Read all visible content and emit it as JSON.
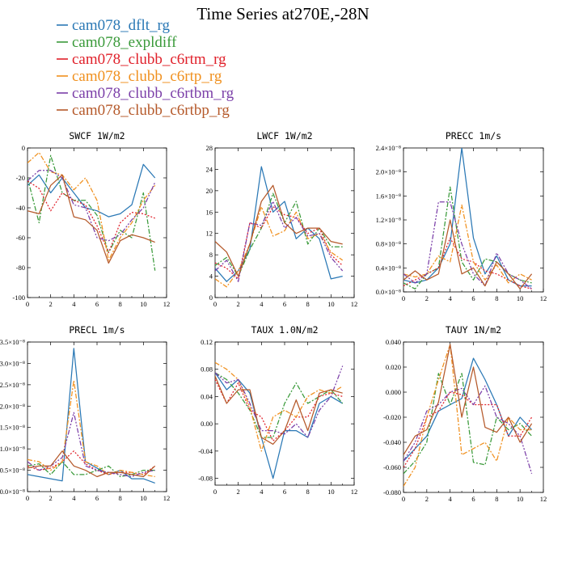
{
  "figure": {
    "title": "Time Series at270E,-28N",
    "legend": [
      {
        "name": "cam078_dflt_rg",
        "color": "#2a78b5"
      },
      {
        "name": "cam078_expldiff",
        "color": "#3a9a3a"
      },
      {
        "name": "cam078_clubb_c6rtm_rg",
        "color": "#e0202a"
      },
      {
        "name": "cam078_clubb_c6rtp_rg",
        "color": "#f0901e"
      },
      {
        "name": "cam078_clubb_c6rtbm_rg",
        "color": "#7b3fa8"
      },
      {
        "name": "cam078_clubb_c6rtbp_rg",
        "color": "#b5592a"
      }
    ]
  },
  "chart_data": [
    {
      "type": "line",
      "title": "SWCF   1W/m2",
      "x": [
        0,
        1,
        2,
        3,
        4,
        5,
        6,
        7,
        8,
        9,
        10,
        11
      ],
      "xlim": [
        0,
        12
      ],
      "xticks": [
        "0",
        "2",
        "4",
        "6",
        "8",
        "10",
        "12"
      ],
      "ylim": [
        -100,
        0
      ],
      "yticks": [
        "-100",
        "-80",
        "-60",
        "-40",
        "-20",
        "0"
      ],
      "series": [
        {
          "values": [
            -25,
            -18,
            -30,
            -20,
            -30,
            -40,
            -42,
            -46,
            -44,
            -38,
            -11,
            -20
          ]
        },
        {
          "values": [
            -20,
            -50,
            -5,
            -30,
            -35,
            -35,
            -45,
            -70,
            -55,
            -60,
            -30,
            -82
          ]
        },
        {
          "values": [
            -22,
            -27,
            -42,
            -30,
            -35,
            -38,
            -52,
            -70,
            -50,
            -43,
            -44,
            -47
          ]
        },
        {
          "values": [
            -10,
            -3,
            -16,
            -18,
            -28,
            -20,
            -35,
            -75,
            -60,
            -50,
            -35,
            -25
          ]
        },
        {
          "values": [
            -22,
            -15,
            -15,
            -20,
            -38,
            -40,
            -60,
            -62,
            -58,
            -48,
            -40,
            -23
          ]
        },
        {
          "values": [
            -42,
            -44,
            -25,
            -18,
            -46,
            -48,
            -55,
            -77,
            -62,
            -58,
            -60,
            -63
          ]
        }
      ]
    },
    {
      "type": "line",
      "title": "LWCF   1W/m2",
      "x": [
        0,
        1,
        2,
        3,
        4,
        5,
        6,
        7,
        8,
        9,
        10,
        11
      ],
      "xlim": [
        0,
        12
      ],
      "xticks": [
        "0",
        "2",
        "4",
        "6",
        "8",
        "10",
        "12"
      ],
      "ylim": [
        0,
        28
      ],
      "yticks": [
        "0",
        "4",
        "8",
        "12",
        "16",
        "20",
        "24",
        "28"
      ],
      "series": [
        {
          "values": [
            5.5,
            3,
            5,
            9,
            24.5,
            16,
            18,
            11,
            13,
            11,
            3.5,
            4
          ]
        },
        {
          "values": [
            6,
            7.5,
            4,
            9,
            13,
            19.5,
            14,
            18,
            10,
            13,
            9.5,
            9.5
          ]
        },
        {
          "values": [
            6.5,
            5.5,
            3.5,
            14,
            13,
            17,
            15.5,
            15,
            12,
            13,
            8,
            6
          ]
        },
        {
          "values": [
            3.5,
            2,
            5,
            10,
            17,
            11.5,
            12.5,
            16,
            11,
            12,
            8.5,
            7
          ]
        },
        {
          "values": [
            5,
            7,
            3,
            14,
            13.5,
            18,
            13,
            15,
            11.5,
            12,
            7.5,
            5
          ]
        },
        {
          "values": [
            10.5,
            8.5,
            4,
            10,
            18,
            21,
            14,
            12,
            13,
            13,
            10.5,
            10
          ]
        }
      ]
    },
    {
      "type": "line",
      "title": "PRECC   1m/s",
      "x": [
        0,
        1,
        2,
        3,
        4,
        5,
        6,
        7,
        8,
        9,
        10,
        11
      ],
      "xlim": [
        0,
        12
      ],
      "xticks": [
        "0",
        "2",
        "4",
        "6",
        "8",
        "10",
        "12"
      ],
      "ylim": [
        0,
        2.4
      ],
      "ytick_values": [
        0,
        0.4,
        0.8,
        1.2,
        1.6,
        2.0,
        2.4
      ],
      "yticks": [
        "0.0×10⁻⁸",
        "0.4×10⁻⁸",
        "0.8×10⁻⁸",
        "1.2×10⁻⁸",
        "1.6×10⁻⁸",
        "2.0×10⁻⁸",
        "2.4×10⁻⁸"
      ],
      "series": [
        {
          "values": [
            0.2,
            0.15,
            0.2,
            0.4,
            0.8,
            2.4,
            0.9,
            0.3,
            0.6,
            0.2,
            0.1,
            0.1
          ]
        },
        {
          "values": [
            0.15,
            0.05,
            0.3,
            0.4,
            1.75,
            0.5,
            0.2,
            0.55,
            0.5,
            0.3,
            0.2,
            0.15
          ]
        },
        {
          "values": [
            0.1,
            0.2,
            0.3,
            0.4,
            0.9,
            0.55,
            0.5,
            0.35,
            0.3,
            0.2,
            0.1,
            0.05
          ]
        },
        {
          "values": [
            0.3,
            0.25,
            0.3,
            0.6,
            0.5,
            1.45,
            0.5,
            0.2,
            0.45,
            0.15,
            0.3,
            0.2
          ]
        },
        {
          "values": [
            0.3,
            0.15,
            0.3,
            1.5,
            1.5,
            0.8,
            0.3,
            0.1,
            0.65,
            0.3,
            0.2,
            0.05
          ]
        },
        {
          "values": [
            0.2,
            0.35,
            0.2,
            0.3,
            1.2,
            0.3,
            0.4,
            0.1,
            0.5,
            0.3,
            0.05,
            0.3
          ]
        }
      ]
    },
    {
      "type": "line",
      "title": "PRECL   1m/s",
      "x": [
        0,
        1,
        2,
        3,
        4,
        5,
        6,
        7,
        8,
        9,
        10,
        11
      ],
      "xlim": [
        0,
        12
      ],
      "xticks": [
        "0",
        "2",
        "4",
        "6",
        "8",
        "10",
        "12"
      ],
      "ylim": [
        0,
        3.5
      ],
      "ytick_values": [
        0,
        0.5,
        1.0,
        1.5,
        2.0,
        2.5,
        3.0,
        3.5
      ],
      "yticks": [
        "0.0×10⁻⁸",
        "0.5×10⁻⁸",
        "1.0×10⁻⁸",
        "1.5×10⁻⁸",
        "2.0×10⁻⁸",
        "2.5×10⁻⁸",
        "3.0×10⁻⁸",
        "3.5×10⁻⁸"
      ],
      "series": [
        {
          "values": [
            0.4,
            0.35,
            0.3,
            0.25,
            3.35,
            0.7,
            0.55,
            0.4,
            0.5,
            0.3,
            0.3,
            0.2
          ]
        },
        {
          "values": [
            0.6,
            0.65,
            0.4,
            0.7,
            0.4,
            0.4,
            0.5,
            0.6,
            0.35,
            0.4,
            0.5,
            0.5
          ]
        },
        {
          "values": [
            0.6,
            0.5,
            0.55,
            0.7,
            0.95,
            0.65,
            0.5,
            0.4,
            0.45,
            0.45,
            0.4,
            0.6
          ]
        },
        {
          "values": [
            0.75,
            0.7,
            0.5,
            0.7,
            2.6,
            0.7,
            0.6,
            0.4,
            0.5,
            0.45,
            0.4,
            0.35
          ]
        },
        {
          "values": [
            0.7,
            0.5,
            0.6,
            0.8,
            1.85,
            0.6,
            0.5,
            0.45,
            0.4,
            0.35,
            0.45,
            0.5
          ]
        },
        {
          "values": [
            0.55,
            0.6,
            0.6,
            0.95,
            0.6,
            0.5,
            0.35,
            0.45,
            0.45,
            0.4,
            0.35,
            0.6
          ]
        }
      ]
    },
    {
      "type": "line",
      "title": "TAUX   1.0N/m2",
      "x": [
        0,
        1,
        2,
        3,
        4,
        5,
        6,
        7,
        8,
        9,
        10,
        11
      ],
      "xlim": [
        0,
        12
      ],
      "xticks": [
        "0",
        "2",
        "4",
        "6",
        "8",
        "10",
        "12"
      ],
      "ylim": [
        -0.09,
        0.12
      ],
      "ytick_values": [
        -0.08,
        -0.04,
        0.0,
        0.04,
        0.08,
        0.12
      ],
      "yticks": [
        "-0.08",
        "-0.04",
        "0.00",
        "0.04",
        "0.08",
        "0.12"
      ],
      "series": [
        {
          "values": [
            0.075,
            0.05,
            0.065,
            0.045,
            -0.02,
            -0.08,
            -0.01,
            -0.01,
            -0.02,
            0.03,
            0.04,
            0.03
          ]
        },
        {
          "values": [
            0.075,
            0.065,
            0.045,
            0.02,
            -0.02,
            -0.02,
            0.03,
            0.06,
            0.03,
            0.04,
            0.05,
            0.03
          ]
        },
        {
          "values": [
            0.065,
            0.03,
            0.06,
            0.02,
            0.01,
            -0.025,
            -0.01,
            0.01,
            0.01,
            0.04,
            0.045,
            0.04
          ]
        },
        {
          "values": [
            0.09,
            0.08,
            0.065,
            0.025,
            -0.04,
            0.01,
            0.02,
            0.01,
            0.04,
            0.05,
            0.045,
            0.055
          ]
        },
        {
          "values": [
            0.075,
            0.06,
            0.065,
            0.03,
            -0.01,
            -0.01,
            -0.015,
            0.0,
            -0.02,
            0.02,
            0.04,
            0.085
          ]
        },
        {
          "values": [
            0.07,
            0.03,
            0.05,
            0.05,
            -0.02,
            -0.03,
            -0.01,
            0.035,
            -0.01,
            0.045,
            0.05,
            0.045
          ]
        }
      ]
    },
    {
      "type": "line",
      "title": "TAUY   1N/m2",
      "x": [
        0,
        1,
        2,
        3,
        4,
        5,
        6,
        7,
        8,
        9,
        10,
        11
      ],
      "xlim": [
        0,
        12
      ],
      "xticks": [
        "0",
        "2",
        "4",
        "6",
        "8",
        "10",
        "12"
      ],
      "ylim": [
        -0.08,
        0.04
      ],
      "ytick_values": [
        -0.08,
        -0.06,
        -0.04,
        -0.02,
        0.0,
        0.02,
        0.04
      ],
      "yticks": [
        "-0.080",
        "-0.060",
        "-0.040",
        "-0.020",
        "0.000",
        "0.020",
        "0.040"
      ],
      "series": [
        {
          "values": [
            -0.055,
            -0.045,
            -0.035,
            -0.015,
            -0.01,
            -0.005,
            0.027,
            0.01,
            -0.01,
            -0.035,
            -0.02,
            -0.03
          ]
        },
        {
          "values": [
            -0.065,
            -0.055,
            -0.04,
            0.015,
            -0.01,
            0.015,
            -0.056,
            -0.058,
            -0.02,
            -0.03,
            -0.025,
            -0.035
          ]
        },
        {
          "values": [
            -0.06,
            -0.045,
            -0.02,
            -0.015,
            0.0,
            -0.002,
            -0.01,
            -0.01,
            -0.01,
            -0.035,
            -0.035,
            -0.02
          ]
        },
        {
          "values": [
            -0.075,
            -0.06,
            -0.02,
            0.01,
            0.038,
            -0.05,
            -0.045,
            -0.04,
            -0.055,
            -0.02,
            -0.03,
            -0.03
          ]
        },
        {
          "values": [
            -0.055,
            -0.04,
            -0.015,
            -0.01,
            0.0,
            0.003,
            -0.01,
            0.005,
            -0.02,
            -0.025,
            -0.035,
            -0.065
          ]
        },
        {
          "values": [
            -0.05,
            -0.035,
            -0.03,
            -0.008,
            0.038,
            -0.02,
            0.02,
            -0.028,
            -0.032,
            -0.02,
            -0.04,
            -0.025
          ]
        }
      ]
    }
  ]
}
